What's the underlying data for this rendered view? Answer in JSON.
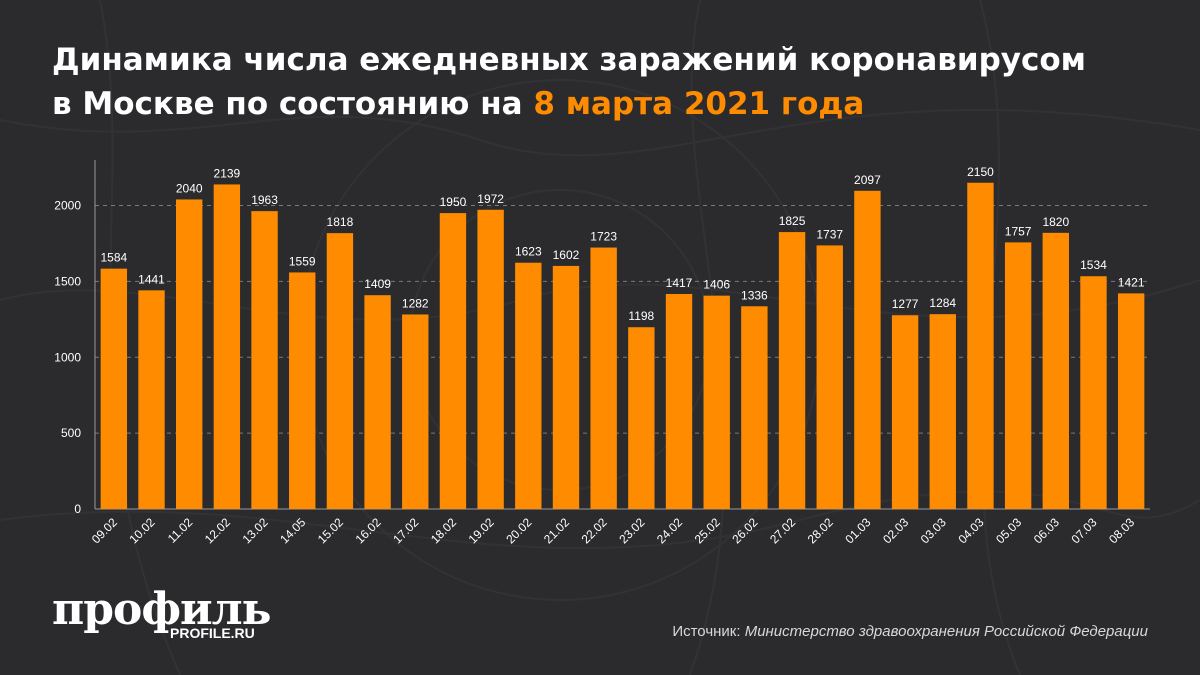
{
  "title": {
    "line1": "Динамика числа ежедневных заражений коронавирусом",
    "line2_prefix": "в Москве по состоянию на",
    "line2_accent": "8 марта 2021 года"
  },
  "source": {
    "label": "Источник:",
    "value": "Министерство здравоохранения Российской Федерации"
  },
  "logo": {
    "main": "профиль",
    "sub": "PROFILE.RU"
  },
  "colors": {
    "background": "#2b2b2e",
    "bar": "#ff8c00",
    "accent": "#ff8c00",
    "text": "#ffffff"
  },
  "chart_data": {
    "type": "bar",
    "categories": [
      "09.02",
      "10.02",
      "11.02",
      "12.02",
      "13.02",
      "14.05",
      "15.02",
      "16.02",
      "17.02",
      "18.02",
      "19.02",
      "20.02",
      "21.02",
      "22.02",
      "23.02",
      "24.02",
      "25.02",
      "26.02",
      "27.02",
      "28.02",
      "01.03",
      "02.03",
      "03.03",
      "04.03",
      "05.03",
      "06.03",
      "07.03",
      "08.03"
    ],
    "values": [
      1584,
      1441,
      2040,
      2139,
      1963,
      1559,
      1818,
      1409,
      1282,
      1950,
      1972,
      1623,
      1602,
      1723,
      1198,
      1417,
      1406,
      1336,
      1825,
      1737,
      2097,
      1277,
      1284,
      2150,
      1757,
      1820,
      1534,
      1421
    ],
    "y_ticks": [
      "0",
      "500",
      "1000",
      "1500",
      "2000"
    ],
    "ylim": [
      0,
      2300
    ],
    "grid": true,
    "data_labels": true
  }
}
